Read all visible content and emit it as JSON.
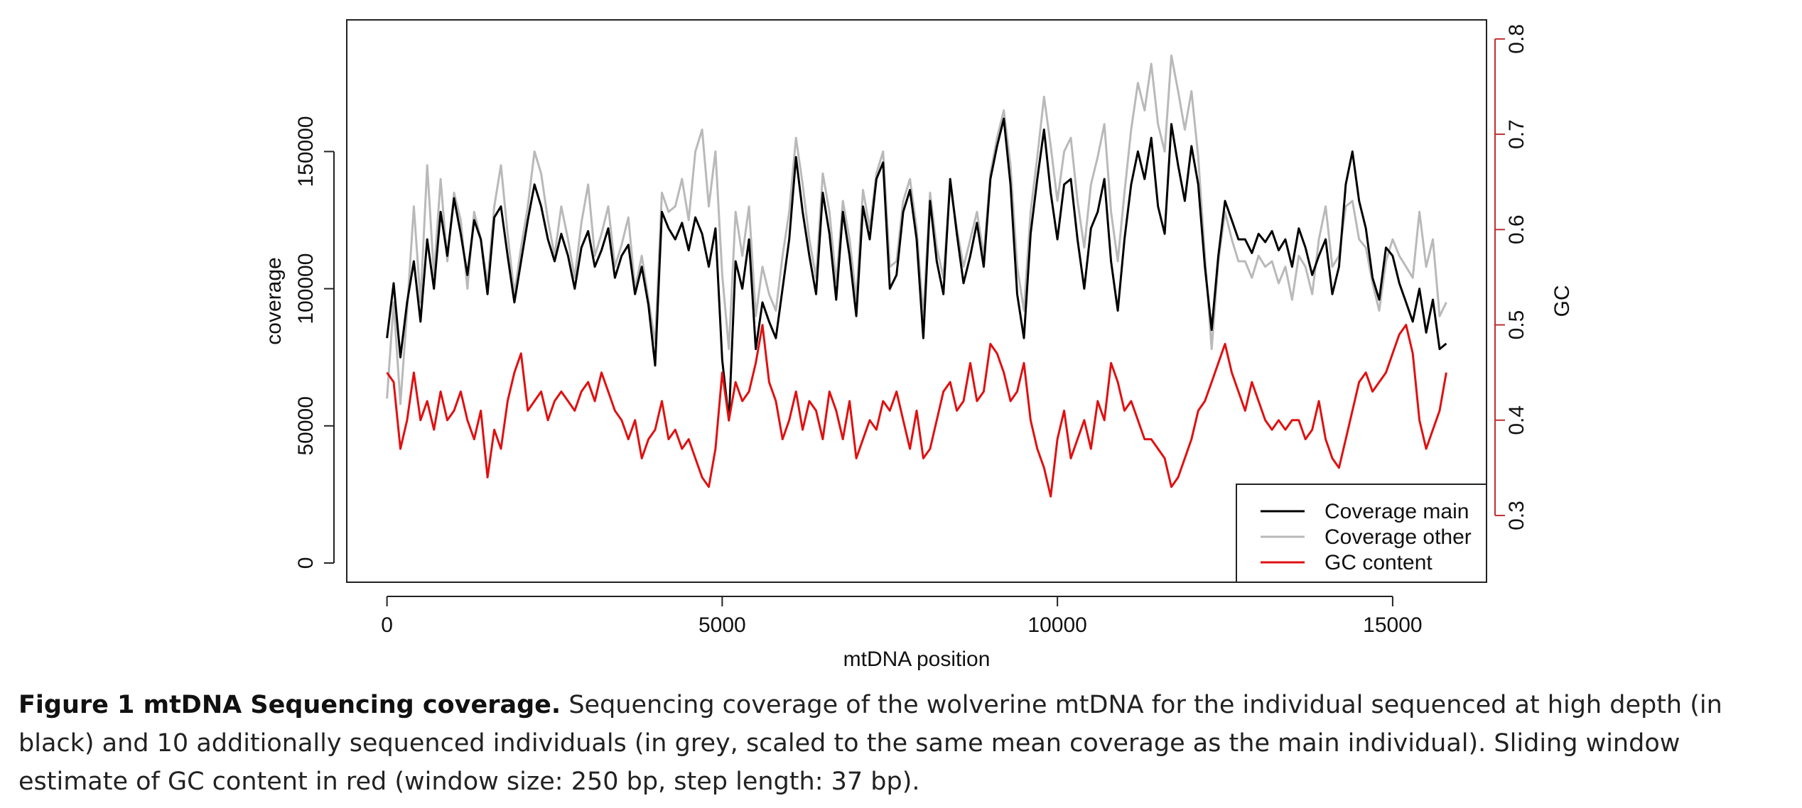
{
  "chart_data": {
    "type": "line",
    "title": "",
    "xlabel": "mtDNA position",
    "ylabel_left": "coverage",
    "ylabel_right": "GC",
    "xlim": [
      -600,
      16400
    ],
    "ylim_left": [
      -7000,
      198000
    ],
    "ylim_right": [
      0.23,
      0.82
    ],
    "x_ticks": [
      "0",
      "5000",
      "10000",
      "15000"
    ],
    "x_tick_values": [
      0,
      5000,
      10000,
      15000
    ],
    "y_left_ticks": [
      "0",
      "50000",
      "100000",
      "150000"
    ],
    "y_left_tick_values": [
      0,
      50000,
      100000,
      150000
    ],
    "y_right_ticks": [
      "0.3",
      "0.4",
      "0.5",
      "0.6",
      "0.7",
      "0.8"
    ],
    "y_right_tick_values": [
      0.3,
      0.4,
      0.5,
      0.6,
      0.7,
      0.8
    ],
    "grid": false,
    "legend": {
      "position": "bottom-right",
      "entries": [
        "Coverage main",
        "Coverage other",
        "GC content"
      ]
    },
    "colors": {
      "main": "#000000",
      "other": "#b9b9b9",
      "gc": "#e01010",
      "right_axis": "#c03030"
    },
    "series": [
      {
        "name": "Coverage main",
        "axis": "left",
        "x": [
          0,
          100,
          200,
          300,
          400,
          500,
          600,
          700,
          800,
          900,
          1000,
          1100,
          1200,
          1300,
          1400,
          1500,
          1600,
          1700,
          1800,
          1900,
          2000,
          2100,
          2200,
          2300,
          2400,
          2500,
          2600,
          2700,
          2800,
          2900,
          3000,
          3100,
          3200,
          3300,
          3400,
          3500,
          3600,
          3700,
          3800,
          3900,
          4000,
          4100,
          4200,
          4300,
          4400,
          4500,
          4600,
          4700,
          4800,
          4900,
          5000,
          5100,
          5200,
          5300,
          5400,
          5500,
          5600,
          5700,
          5800,
          5900,
          6000,
          6100,
          6200,
          6300,
          6400,
          6500,
          6600,
          6700,
          6800,
          6900,
          7000,
          7100,
          7200,
          7300,
          7400,
          7500,
          7600,
          7700,
          7800,
          7900,
          8000,
          8100,
          8200,
          8300,
          8400,
          8500,
          8600,
          8700,
          8800,
          8900,
          9000,
          9100,
          9200,
          9300,
          9400,
          9500,
          9600,
          9700,
          9800,
          9900,
          10000,
          10100,
          10200,
          10300,
          10400,
          10500,
          10600,
          10700,
          10800,
          10900,
          11000,
          11100,
          11200,
          11300,
          11400,
          11500,
          11600,
          11700,
          11800,
          11900,
          12000,
          12100,
          12200,
          12300,
          12400,
          12500,
          12600,
          12700,
          12800,
          12900,
          13000,
          13100,
          13200,
          13300,
          13400,
          13500,
          13600,
          13700,
          13800,
          13900,
          14000,
          14100,
          14200,
          14300,
          14400,
          14500,
          14600,
          14700,
          14800,
          14900,
          15000,
          15100,
          15200,
          15300,
          15400,
          15500,
          15600,
          15700,
          15800
        ],
        "values": [
          82000,
          102000,
          75000,
          95000,
          110000,
          88000,
          118000,
          100000,
          128000,
          112000,
          133000,
          120000,
          105000,
          125000,
          118000,
          98000,
          126000,
          130000,
          112000,
          95000,
          110000,
          125000,
          138000,
          130000,
          118000,
          110000,
          120000,
          112000,
          100000,
          115000,
          121000,
          108000,
          114000,
          122000,
          104000,
          112000,
          116000,
          98000,
          108000,
          94000,
          72000,
          128000,
          122000,
          118000,
          124000,
          114000,
          126000,
          120000,
          108000,
          122000,
          74000,
          52000,
          110000,
          100000,
          118000,
          78000,
          95000,
          88000,
          82000,
          100000,
          118000,
          148000,
          128000,
          112000,
          98000,
          135000,
          120000,
          96000,
          128000,
          112000,
          90000,
          130000,
          118000,
          140000,
          146000,
          100000,
          105000,
          128000,
          136000,
          118000,
          82000,
          132000,
          110000,
          98000,
          140000,
          120000,
          102000,
          112000,
          124000,
          108000,
          140000,
          152000,
          162000,
          138000,
          98000,
          82000,
          120000,
          140000,
          158000,
          135000,
          118000,
          138000,
          140000,
          118000,
          100000,
          122000,
          128000,
          140000,
          110000,
          92000,
          118000,
          138000,
          150000,
          140000,
          155000,
          130000,
          120000,
          160000,
          145000,
          132000,
          152000,
          138000,
          108000,
          85000,
          112000,
          132000,
          125000,
          118000,
          118000,
          113000,
          120000,
          117000,
          121000,
          114000,
          118000,
          108000,
          122000,
          115000,
          105000,
          112000,
          118000,
          98000,
          108000,
          138000,
          150000,
          132000,
          122000,
          104000,
          96000,
          115000,
          112000,
          102000,
          95000,
          88000,
          100000,
          84000,
          96000,
          78000,
          80000
        ]
      },
      {
        "name": "Coverage other",
        "axis": "left",
        "x": [
          0,
          100,
          200,
          300,
          400,
          500,
          600,
          700,
          800,
          900,
          1000,
          1100,
          1200,
          1300,
          1400,
          1500,
          1600,
          1700,
          1800,
          1900,
          2000,
          2100,
          2200,
          2300,
          2400,
          2500,
          2600,
          2700,
          2800,
          2900,
          3000,
          3100,
          3200,
          3300,
          3400,
          3500,
          3600,
          3700,
          3800,
          3900,
          4000,
          4100,
          4200,
          4300,
          4400,
          4500,
          4600,
          4700,
          4800,
          4900,
          5000,
          5100,
          5200,
          5300,
          5400,
          5500,
          5600,
          5700,
          5800,
          5900,
          6000,
          6100,
          6200,
          6300,
          6400,
          6500,
          6600,
          6700,
          6800,
          6900,
          7000,
          7100,
          7200,
          7300,
          7400,
          7500,
          7600,
          7700,
          7800,
          7900,
          8000,
          8100,
          8200,
          8300,
          8400,
          8500,
          8600,
          8700,
          8800,
          8900,
          9000,
          9100,
          9200,
          9300,
          9400,
          9500,
          9600,
          9700,
          9800,
          9900,
          10000,
          10100,
          10200,
          10300,
          10400,
          10500,
          10600,
          10700,
          10800,
          10900,
          11000,
          11100,
          11200,
          11300,
          11400,
          11500,
          11600,
          11700,
          11800,
          11900,
          12000,
          12100,
          12200,
          12300,
          12400,
          12500,
          12600,
          12700,
          12800,
          12900,
          13000,
          13100,
          13200,
          13300,
          13400,
          13500,
          13600,
          13700,
          13800,
          13900,
          14000,
          14100,
          14200,
          14300,
          14400,
          14500,
          14600,
          14700,
          14800,
          14900,
          15000,
          15100,
          15200,
          15300,
          15400,
          15500,
          15600,
          15700,
          15800
        ],
        "values": [
          60000,
          95000,
          58000,
          92000,
          130000,
          95000,
          145000,
          105000,
          140000,
          110000,
          135000,
          125000,
          100000,
          128000,
          118000,
          102000,
          130000,
          145000,
          120000,
          98000,
          115000,
          130000,
          150000,
          142000,
          125000,
          112000,
          130000,
          118000,
          104000,
          124000,
          138000,
          112000,
          120000,
          130000,
          108000,
          116000,
          126000,
          100000,
          112000,
          96000,
          80000,
          135000,
          128000,
          130000,
          140000,
          125000,
          150000,
          158000,
          130000,
          150000,
          105000,
          78000,
          128000,
          112000,
          130000,
          90000,
          108000,
          98000,
          92000,
          112000,
          128000,
          155000,
          138000,
          118000,
          104000,
          142000,
          128000,
          102000,
          132000,
          118000,
          96000,
          136000,
          122000,
          142000,
          150000,
          108000,
          110000,
          132000,
          140000,
          122000,
          90000,
          135000,
          115000,
          104000,
          138000,
          122000,
          108000,
          118000,
          128000,
          112000,
          142000,
          155000,
          165000,
          145000,
          108000,
          92000,
          128000,
          148000,
          170000,
          152000,
          132000,
          150000,
          155000,
          132000,
          115000,
          138000,
          148000,
          160000,
          128000,
          110000,
          135000,
          158000,
          175000,
          165000,
          182000,
          160000,
          150000,
          185000,
          172000,
          158000,
          172000,
          148000,
          112000,
          78000,
          110000,
          128000,
          118000,
          110000,
          110000,
          104000,
          112000,
          108000,
          110000,
          102000,
          108000,
          96000,
          112000,
          108000,
          98000,
          118000,
          130000,
          108000,
          112000,
          130000,
          132000,
          118000,
          115000,
          102000,
          92000,
          110000,
          118000,
          112000,
          108000,
          104000,
          128000,
          108000,
          118000,
          90000,
          95000
        ]
      },
      {
        "name": "GC content",
        "axis": "right",
        "x": [
          0,
          100,
          200,
          300,
          400,
          500,
          600,
          700,
          800,
          900,
          1000,
          1100,
          1200,
          1300,
          1400,
          1500,
          1600,
          1700,
          1800,
          1900,
          2000,
          2100,
          2200,
          2300,
          2400,
          2500,
          2600,
          2700,
          2800,
          2900,
          3000,
          3100,
          3200,
          3300,
          3400,
          3500,
          3600,
          3700,
          3800,
          3900,
          4000,
          4100,
          4200,
          4300,
          4400,
          4500,
          4600,
          4700,
          4800,
          4900,
          5000,
          5100,
          5200,
          5300,
          5400,
          5500,
          5600,
          5700,
          5800,
          5900,
          6000,
          6100,
          6200,
          6300,
          6400,
          6500,
          6600,
          6700,
          6800,
          6900,
          7000,
          7100,
          7200,
          7300,
          7400,
          7500,
          7600,
          7700,
          7800,
          7900,
          8000,
          8100,
          8200,
          8300,
          8400,
          8500,
          8600,
          8700,
          8800,
          8900,
          9000,
          9100,
          9200,
          9300,
          9400,
          9500,
          9600,
          9700,
          9800,
          9900,
          10000,
          10100,
          10200,
          10300,
          10400,
          10500,
          10600,
          10700,
          10800,
          10900,
          11000,
          11100,
          11200,
          11300,
          11400,
          11500,
          11600,
          11700,
          11800,
          11900,
          12000,
          12100,
          12200,
          12300,
          12400,
          12500,
          12600,
          12700,
          12800,
          12900,
          13000,
          13100,
          13200,
          13300,
          13400,
          13500,
          13600,
          13700,
          13800,
          13900,
          14000,
          14100,
          14200,
          14300,
          14400,
          14500,
          14600,
          14700,
          14800,
          14900,
          15000,
          15100,
          15200,
          15300,
          15400,
          15500,
          15600,
          15700,
          15800
        ],
        "values": [
          0.45,
          0.44,
          0.37,
          0.4,
          0.45,
          0.4,
          0.42,
          0.39,
          0.43,
          0.4,
          0.41,
          0.43,
          0.4,
          0.38,
          0.41,
          0.34,
          0.39,
          0.37,
          0.42,
          0.45,
          0.47,
          0.41,
          0.42,
          0.43,
          0.4,
          0.42,
          0.43,
          0.42,
          0.41,
          0.43,
          0.44,
          0.42,
          0.45,
          0.43,
          0.41,
          0.4,
          0.38,
          0.4,
          0.36,
          0.38,
          0.39,
          0.42,
          0.38,
          0.39,
          0.37,
          0.38,
          0.36,
          0.34,
          0.33,
          0.37,
          0.45,
          0.4,
          0.44,
          0.42,
          0.43,
          0.46,
          0.5,
          0.44,
          0.42,
          0.38,
          0.4,
          0.43,
          0.39,
          0.42,
          0.41,
          0.38,
          0.43,
          0.41,
          0.38,
          0.42,
          0.36,
          0.38,
          0.4,
          0.39,
          0.42,
          0.41,
          0.43,
          0.4,
          0.37,
          0.41,
          0.36,
          0.37,
          0.4,
          0.43,
          0.44,
          0.41,
          0.42,
          0.46,
          0.42,
          0.43,
          0.48,
          0.47,
          0.45,
          0.42,
          0.43,
          0.46,
          0.4,
          0.37,
          0.35,
          0.32,
          0.38,
          0.41,
          0.36,
          0.38,
          0.4,
          0.37,
          0.42,
          0.4,
          0.46,
          0.44,
          0.41,
          0.42,
          0.4,
          0.38,
          0.38,
          0.37,
          0.36,
          0.33,
          0.34,
          0.36,
          0.38,
          0.41,
          0.42,
          0.44,
          0.46,
          0.48,
          0.45,
          0.43,
          0.41,
          0.44,
          0.42,
          0.4,
          0.39,
          0.4,
          0.39,
          0.4,
          0.4,
          0.38,
          0.39,
          0.42,
          0.38,
          0.36,
          0.35,
          0.38,
          0.41,
          0.44,
          0.45,
          0.43,
          0.44,
          0.45,
          0.47,
          0.49,
          0.5,
          0.47,
          0.4,
          0.37,
          0.39,
          0.41,
          0.45
        ]
      }
    ]
  },
  "caption": {
    "label": "Figure 1 mtDNA Sequencing coverage.",
    "text": " Sequencing coverage of the wolverine mtDNA for the individual sequenced at high depth (in black) and 10 additionally sequenced individuals (in grey, scaled to the same mean coverage as the main individual). Sliding window estimate of GC content in red (window size: 250 bp, step length: 37 bp)."
  }
}
